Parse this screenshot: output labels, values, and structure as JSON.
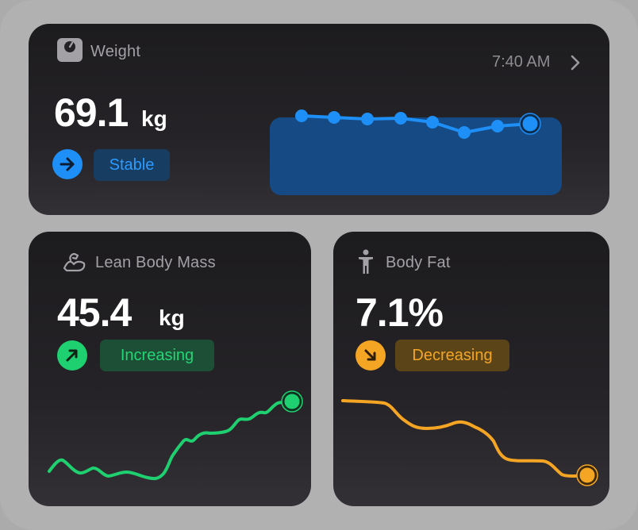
{
  "weight": {
    "title": "Weight",
    "value": "69.1",
    "unit": "kg",
    "status": "Stable",
    "time": "7:40 AM",
    "trend": [
      0.5,
      0.55,
      0.6,
      0.62,
      0.7,
      1.0,
      0.72,
      0.6
    ],
    "colors": {
      "accent": "#1e8ff7",
      "area": "#164a84",
      "badge_bg": "#173d63"
    }
  },
  "lean_mass": {
    "title": "Lean Body Mass",
    "value": "45.4",
    "unit": "kg",
    "status": "Increasing",
    "colors": {
      "accent": "#1fd070",
      "badge_bg": "#1c4f35"
    }
  },
  "body_fat": {
    "title": "Body Fat",
    "value": "7.1%",
    "status": "Decreasing",
    "colors": {
      "accent": "#f5a524",
      "badge_bg": "#5b4418"
    }
  },
  "icons": {
    "weight": "scale-icon",
    "lean": "flexed-arm-icon",
    "fat": "person-figure-icon",
    "chevron": "chevron-right-icon",
    "stable": "arrow-right-icon",
    "increasing": "arrow-up-right-icon",
    "decreasing": "arrow-down-right-icon"
  }
}
